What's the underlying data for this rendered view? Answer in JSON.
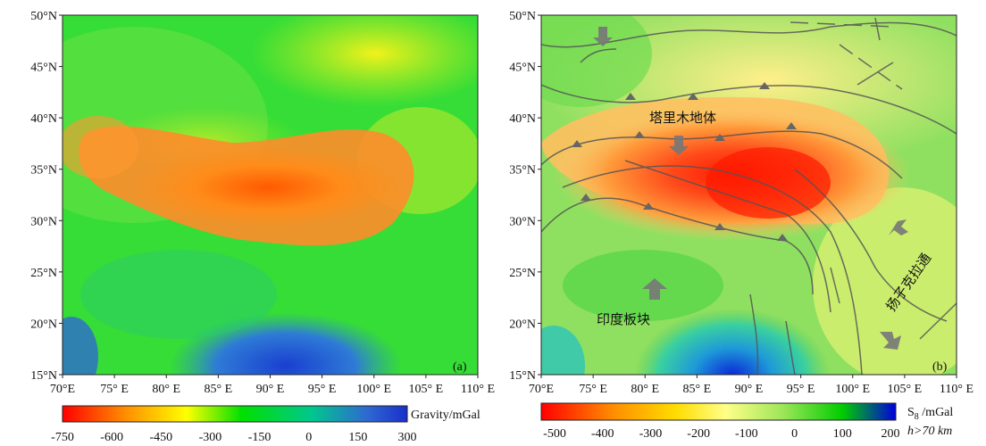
{
  "panel_a": {
    "tag": "(a)",
    "lat_labels": [
      "50°N",
      "45°N",
      "40°N",
      "35°N",
      "30°N",
      "25°N",
      "20°N",
      "15°N"
    ],
    "lon_labels": [
      "70°E",
      "75° E",
      "80° E",
      "85° E",
      "90° E",
      "95° E",
      "100° E",
      "105° E",
      "110° E"
    ],
    "colorbar": {
      "title": "Gravity/mGal",
      "ticks": [
        "-750",
        "-600",
        "-450",
        "-300",
        "-150",
        "0",
        "150",
        "300"
      ],
      "colors": [
        "#ff0000",
        "#ff8c00",
        "#ffff00",
        "#00e000",
        "#00c88c",
        "#2e6bd0",
        "#1a2ecc"
      ]
    }
  },
  "panel_b": {
    "tag": "(b)",
    "lat_labels": [
      "50°N",
      "45°N",
      "40°N",
      "35°N",
      "30°N",
      "25°N",
      "20°N",
      "15°N"
    ],
    "lon_labels": [
      "70°E",
      "75° E",
      "80° E",
      "85° E",
      "90° E",
      "95° E",
      "100° E",
      "105° E",
      "110° E"
    ],
    "annotations": {
      "tarim": "塔里木地体",
      "india": "印度板块",
      "yangtze": "扬子克拉通"
    },
    "colorbar": {
      "title_main": "S",
      "title_sub": "8",
      "title_unit": " /mGal",
      "subtitle": "h>70 km",
      "ticks": [
        "-500",
        "-400",
        "-300",
        "-200",
        "-100",
        "0",
        "100",
        "200"
      ],
      "colors": [
        "#ff0000",
        "#ff8c00",
        "#ffdd00",
        "#ffff88",
        "#9fe65a",
        "#00cc00",
        "#0000dd"
      ]
    }
  }
}
